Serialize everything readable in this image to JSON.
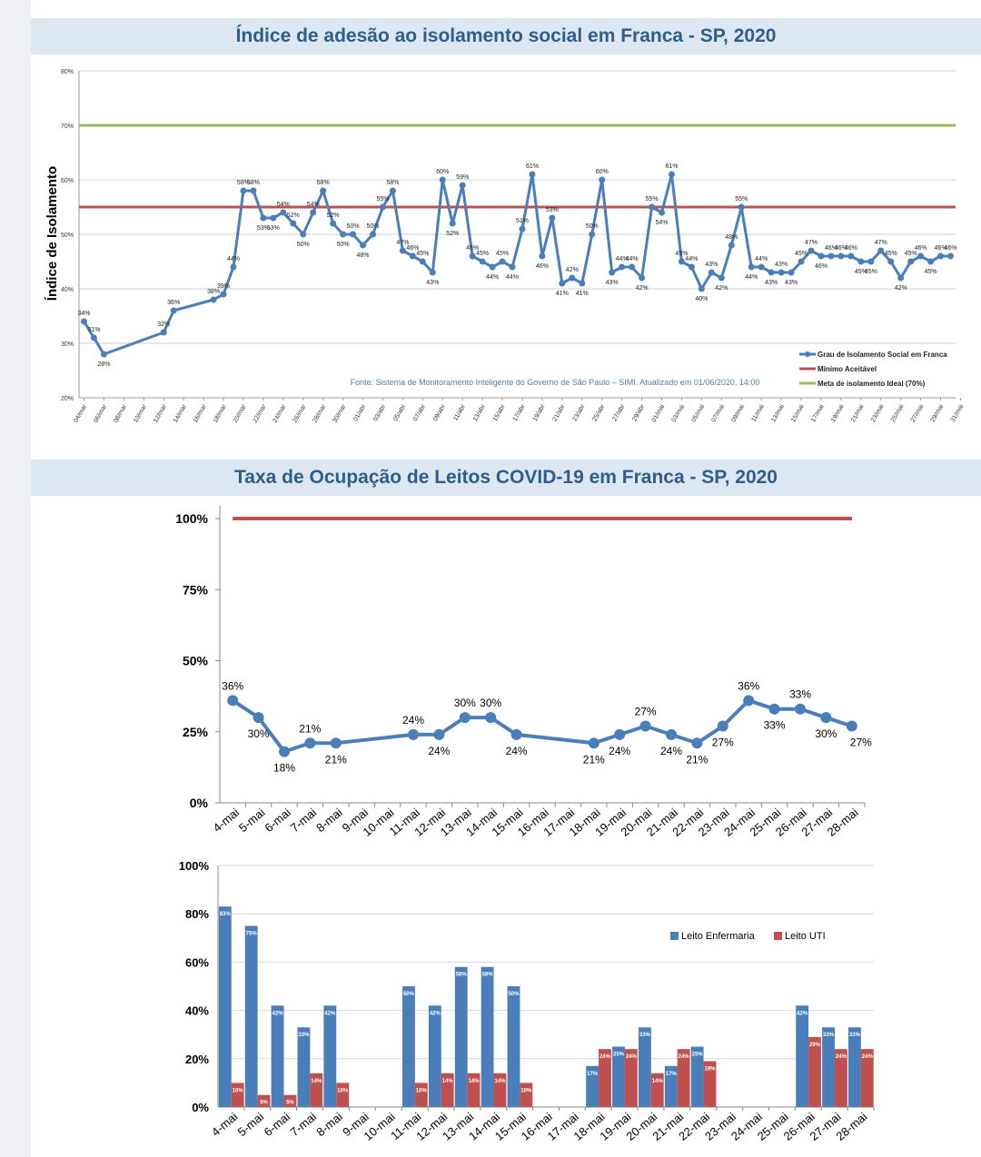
{
  "chart_data": [
    {
      "type": "line",
      "title": "Índice de adesão ao isolamento social em Franca - SP, 2020",
      "ylabel": "Índice de Isolamento",
      "ylim": [
        20,
        80
      ],
      "yticks": [
        "20%",
        "30%",
        "40%",
        "50%",
        "60%",
        "70%",
        "80%"
      ],
      "xticks": [
        "04/mar",
        "06/mar",
        "08/mar",
        "10/mar",
        "12/mar",
        "14/mar",
        "16/mar",
        "18/mar",
        "20/mar",
        "22/mar",
        "24/mar",
        "26/mar",
        "28/mar",
        "30/mar",
        "01/abr",
        "03/abr",
        "05/abr",
        "07/abr",
        "09/abr",
        "11/abr",
        "13/abr",
        "15/abr",
        "17/abr",
        "19/abr",
        "21/abr",
        "23/abr",
        "25/abr",
        "27/abr",
        "29/abr",
        "01/mai",
        "03/mai",
        "05/mai",
        "07/mai",
        "09/mai",
        "11/mai",
        "13/mai",
        "15/mai",
        "17/mai",
        "19/mai",
        "21/mai",
        "23/mai",
        "25/mai",
        "27/mai",
        "29/mai",
        "31/mai"
      ],
      "series": [
        {
          "name": "Grau de Isolamento Social em Franca",
          "color": "#4a7ebb",
          "points": [
            [
              0,
              34
            ],
            [
              1,
              31
            ],
            [
              2,
              28
            ],
            [
              8,
              32
            ],
            [
              9,
              36
            ],
            [
              13,
              38
            ],
            [
              14,
              39
            ],
            [
              15,
              44
            ],
            [
              16,
              58
            ],
            [
              17,
              58
            ],
            [
              18,
              53
            ],
            [
              19,
              53
            ],
            [
              20,
              54
            ],
            [
              21,
              52
            ],
            [
              22,
              50
            ],
            [
              23,
              54
            ],
            [
              24,
              58
            ],
            [
              25,
              52
            ],
            [
              26,
              50
            ],
            [
              27,
              50
            ],
            [
              28,
              48
            ],
            [
              29,
              50
            ],
            [
              30,
              55
            ],
            [
              31,
              58
            ],
            [
              32,
              47
            ],
            [
              33,
              46
            ],
            [
              34,
              45
            ],
            [
              35,
              43
            ],
            [
              36,
              60
            ],
            [
              37,
              52
            ],
            [
              38,
              59
            ],
            [
              39,
              46
            ],
            [
              40,
              45
            ],
            [
              41,
              44
            ],
            [
              42,
              45
            ],
            [
              43,
              44
            ],
            [
              44,
              51
            ],
            [
              45,
              61
            ],
            [
              46,
              46
            ],
            [
              47,
              53
            ],
            [
              48,
              41
            ],
            [
              49,
              42
            ],
            [
              50,
              41
            ],
            [
              51,
              50
            ],
            [
              52,
              60
            ],
            [
              53,
              43
            ],
            [
              54,
              44
            ],
            [
              55,
              44
            ],
            [
              56,
              42
            ],
            [
              57,
              55
            ],
            [
              58,
              54
            ],
            [
              59,
              61
            ],
            [
              60,
              45
            ],
            [
              61,
              44
            ],
            [
              62,
              40
            ],
            [
              63,
              43
            ],
            [
              64,
              42
            ],
            [
              65,
              48
            ],
            [
              66,
              55
            ],
            [
              67,
              44
            ],
            [
              68,
              44
            ],
            [
              69,
              43
            ],
            [
              70,
              43
            ],
            [
              71,
              43
            ],
            [
              72,
              45
            ],
            [
              73,
              47
            ],
            [
              74,
              46
            ],
            [
              75,
              46
            ],
            [
              76,
              46
            ],
            [
              77,
              46
            ],
            [
              78,
              45
            ],
            [
              79,
              45
            ],
            [
              80,
              47
            ],
            [
              81,
              45
            ],
            [
              82,
              42
            ],
            [
              83,
              45
            ],
            [
              84,
              46
            ],
            [
              85,
              45
            ],
            [
              86,
              46
            ],
            [
              87,
              46
            ]
          ]
        },
        {
          "name": "Mínimo Aceitável",
          "color": "#c0504d",
          "value": 55
        },
        {
          "name": "Meta de isolamento Ideal (70%)",
          "color": "#9bbb59",
          "value": 70
        }
      ],
      "annotation": "Fonte: Sistema de Monitoramento Inteligente do Governo de São Paulo – SIMI. Atualizado em 01/06/2020, 14:00"
    },
    {
      "type": "line",
      "title": "Taxa de Ocupação de Leitos COVID-19 em Franca - SP, 2020",
      "categories": [
        "4-mai",
        "5-mai",
        "6-mai",
        "7-mai",
        "8-mai",
        "9-mai",
        "10-mai",
        "11-mai",
        "12-mai",
        "13-mai",
        "14-mai",
        "15-mai",
        "16-mai",
        "17-mai",
        "18-mai",
        "19-mai",
        "20-mai",
        "21-mai",
        "22-mai",
        "23-mai",
        "24-mai",
        "25-mai",
        "26-mai",
        "27-mai",
        "28-mai"
      ],
      "yticks": [
        "0%",
        "25%",
        "50%",
        "75%",
        "100%"
      ],
      "ylim": [
        0,
        100
      ],
      "series": [
        {
          "color": "#4a7ebb",
          "values": [
            36,
            30,
            18,
            21,
            21,
            null,
            null,
            24,
            24,
            30,
            30,
            24,
            null,
            null,
            21,
            24,
            27,
            24,
            21,
            27,
            36,
            33,
            33,
            30,
            27
          ],
          "labels": [
            "36%",
            "30%",
            "18%",
            "21%",
            "21%",
            "",
            "",
            "24%",
            "24%",
            "30%",
            "30%",
            "24%",
            "",
            "",
            "21%",
            "24%",
            "27%",
            "24%",
            "21%",
            "27%",
            "36%",
            "33%",
            "33%",
            "30%",
            "27%"
          ]
        },
        {
          "color": "#c0504d",
          "value": 100
        }
      ]
    },
    {
      "type": "bar",
      "categories": [
        "4-mai",
        "5-mai",
        "6-mai",
        "7-mai",
        "8-mai",
        "9-mai",
        "10-mai",
        "11-mai",
        "12-mai",
        "13-mai",
        "14-mai",
        "15-mai",
        "16-mai",
        "17-mai",
        "18-mai",
        "19-mai",
        "20-mai",
        "21-mai",
        "22-mai",
        "23-mai",
        "24-mai",
        "25-mai",
        "26-mai",
        "27-mai",
        "28-mai"
      ],
      "yticks": [
        "0%",
        "20%",
        "40%",
        "60%",
        "80%",
        "100%"
      ],
      "ylim": [
        0,
        100
      ],
      "legend": "right",
      "series": [
        {
          "name": "Leito Enfermaria",
          "color": "#4a7ebb",
          "values": [
            83,
            75,
            42,
            33,
            42,
            null,
            null,
            50,
            42,
            58,
            58,
            50,
            null,
            null,
            17,
            25,
            33,
            17,
            25,
            null,
            null,
            null,
            42,
            33,
            33
          ],
          "labels": [
            "83%",
            "75%",
            "42%",
            "33%",
            "42%",
            "",
            "",
            "50%",
            "42%",
            "58%",
            "58%",
            "50%",
            "",
            "",
            "17%",
            "25%",
            "33%",
            "17%",
            "25%",
            "",
            "",
            "",
            "42%",
            "33%",
            "33%"
          ]
        },
        {
          "name": "Leito UTI",
          "color": "#c0504d",
          "values": [
            10,
            5,
            5,
            14,
            10,
            null,
            null,
            10,
            14,
            14,
            14,
            10,
            null,
            null,
            24,
            24,
            14,
            24,
            19,
            null,
            null,
            null,
            29,
            24,
            24
          ],
          "labels": [
            "10%",
            "5%",
            "5%",
            "14%",
            "10%",
            "",
            "",
            "10%",
            "14%",
            "14%",
            "14%",
            "10%",
            "",
            "",
            "24%",
            "24%",
            "14%",
            "24%",
            "19%",
            "",
            "",
            "",
            "29%",
            "24%",
            "24%"
          ]
        }
      ]
    }
  ]
}
